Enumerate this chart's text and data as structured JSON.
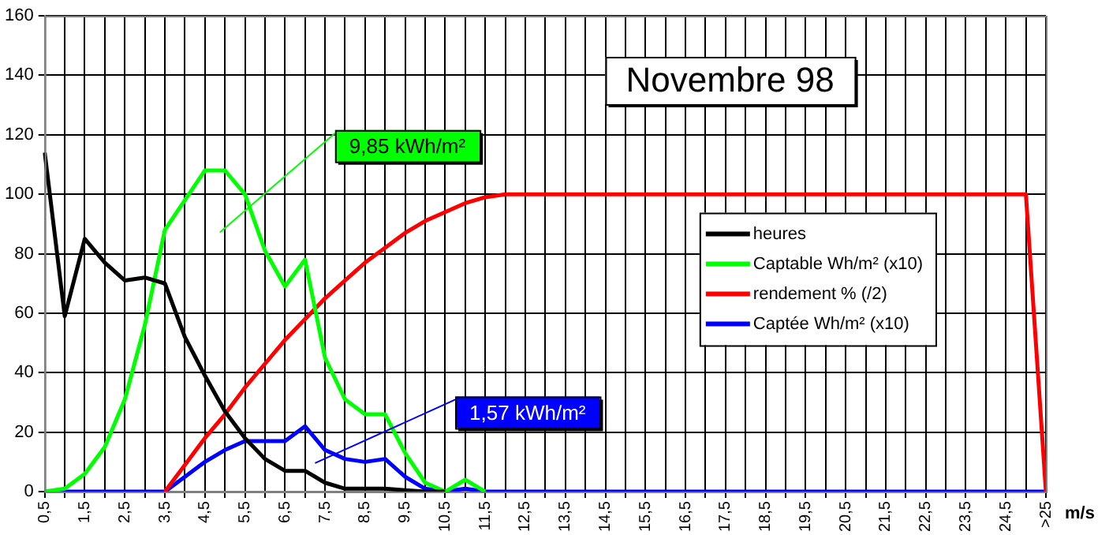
{
  "chart_data": {
    "type": "line",
    "title": "Novembre 98",
    "xlabel": "m/s",
    "categories": [
      "0,5",
      null,
      "1,5",
      null,
      "2,5",
      null,
      "3,5",
      null,
      "4,5",
      null,
      "5,5",
      null,
      "6,5",
      null,
      "7,5",
      null,
      "8,5",
      null,
      "9,5",
      null,
      "10,5",
      null,
      "11,5",
      null,
      "12,5",
      null,
      "13,5",
      null,
      "14,5",
      null,
      "15,5",
      null,
      "16,5",
      null,
      "17,5",
      null,
      "18,5",
      null,
      "19,5",
      null,
      "20,5",
      null,
      "21,5",
      null,
      "22,5",
      null,
      "23,5",
      null,
      "24,5",
      null,
      ">25"
    ],
    "series": [
      {
        "name": "heures",
        "color": "#000000",
        "values": [
          114,
          59,
          85,
          77,
          71,
          72,
          70,
          52,
          39,
          27,
          18,
          11,
          7,
          7,
          3,
          1,
          1,
          1,
          0.5,
          0,
          0,
          null,
          null,
          null,
          null,
          null,
          null,
          null,
          null,
          null,
          null,
          null,
          null,
          null,
          null,
          null,
          null,
          null,
          null,
          null,
          null,
          null,
          null,
          null,
          null,
          null,
          null,
          null,
          null,
          null,
          null
        ]
      },
      {
        "name": "Captable Wh/m² (x10)",
        "color": "#00ff00",
        "values": [
          0,
          1,
          6,
          15,
          31,
          56,
          88,
          98,
          108,
          108,
          100,
          81,
          69,
          78,
          45,
          31,
          26,
          26,
          13,
          3,
          0,
          4,
          0,
          null,
          null,
          null,
          null,
          null,
          null,
          null,
          null,
          null,
          null,
          null,
          null,
          null,
          null,
          null,
          null,
          null,
          null,
          null,
          null,
          null,
          null,
          null,
          null,
          null,
          null,
          null,
          null
        ]
      },
      {
        "name": "rendement % (/2)",
        "color": "#ff0000",
        "values": [
          null,
          null,
          null,
          null,
          null,
          null,
          0,
          9,
          18,
          26,
          35,
          43,
          51,
          58,
          65,
          71,
          77,
          82,
          87,
          91,
          94,
          97,
          99,
          100,
          100,
          100,
          100,
          100,
          100,
          100,
          100,
          100,
          100,
          100,
          100,
          100,
          100,
          100,
          100,
          100,
          100,
          100,
          100,
          100,
          100,
          100,
          100,
          100,
          100,
          100,
          0
        ]
      },
      {
        "name": "Captée Wh/m² (x10)",
        "color": "#0000ff",
        "values": [
          0,
          0,
          0,
          0,
          0,
          0,
          0,
          5,
          10,
          14,
          17,
          17,
          17,
          22,
          14,
          11,
          10,
          11,
          5,
          1,
          0,
          1,
          0,
          0,
          0,
          0,
          0,
          0,
          0,
          0,
          0,
          0,
          0,
          0,
          0,
          0,
          0,
          0,
          0,
          0,
          0,
          0,
          0,
          0,
          0,
          0,
          0,
          0,
          0,
          0,
          0
        ]
      }
    ],
    "ylim": [
      0,
      160
    ],
    "yticks": [
      0,
      20,
      40,
      60,
      80,
      100,
      120,
      140,
      160
    ],
    "grid": true,
    "legend": "right",
    "marker": "none",
    "line_style": "solid",
    "annotations": [
      "9,85 kWh/m²",
      "1,57 kWh/m²"
    ]
  }
}
